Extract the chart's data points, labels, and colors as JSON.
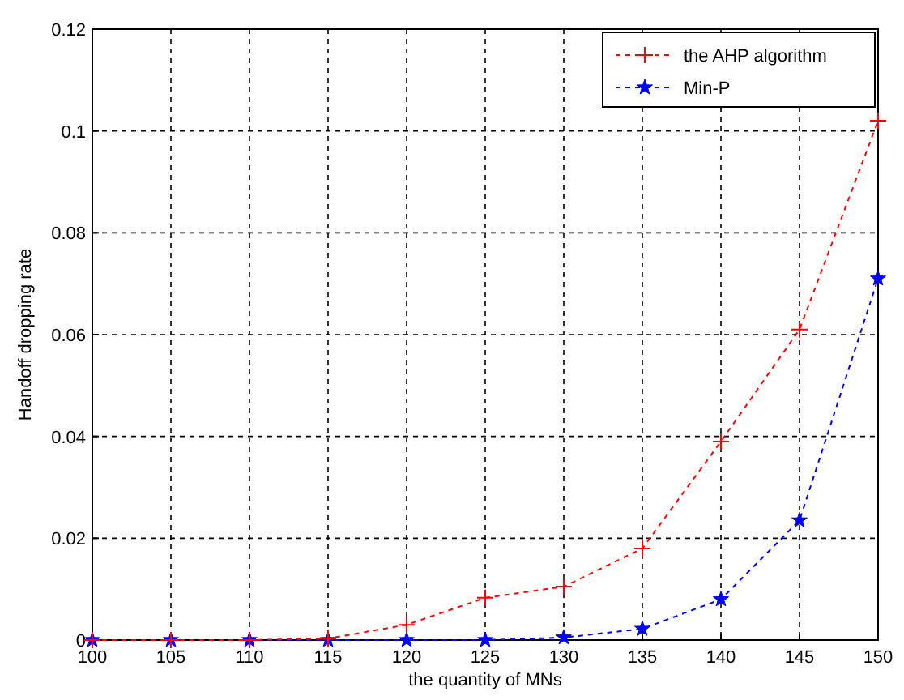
{
  "chart_data": {
    "type": "line",
    "xlabel": "the quantity of MNs",
    "ylabel": "Handoff dropping rate",
    "x": [
      100,
      105,
      110,
      115,
      120,
      125,
      130,
      135,
      140,
      145,
      150
    ],
    "series": [
      {
        "name": "the AHP algorithm",
        "color": "#ff0000",
        "marker": "cross",
        "values": [
          0,
          0,
          0,
          0.0003,
          0.003,
          0.0083,
          0.0105,
          0.018,
          0.039,
          0.061,
          0.102
        ]
      },
      {
        "name": "Min-P",
        "color": "#0000ff",
        "marker": "star",
        "values": [
          0,
          0,
          0,
          0,
          0,
          0,
          0.0005,
          0.0022,
          0.008,
          0.0235,
          0.071
        ]
      }
    ],
    "xlim": [
      100,
      150
    ],
    "xticks": [
      100,
      105,
      110,
      115,
      120,
      125,
      130,
      135,
      140,
      145,
      150
    ],
    "ylim": [
      0,
      0.12
    ],
    "yticks": [
      0,
      0.02,
      0.04,
      0.06,
      0.08,
      0.1,
      0.12
    ],
    "grid": true,
    "legend": "top right",
    "line_style": "dashed"
  }
}
